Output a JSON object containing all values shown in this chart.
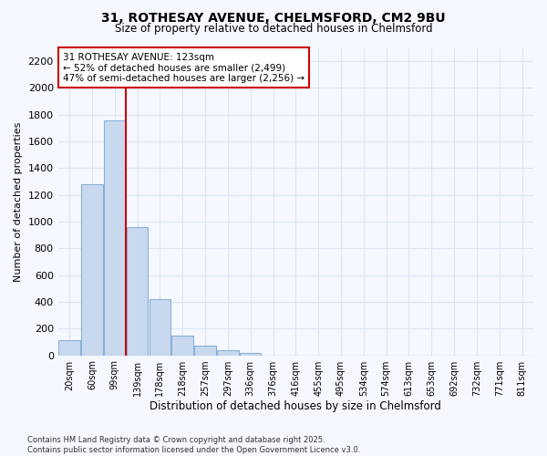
{
  "title": "31, ROTHESAY AVENUE, CHELMSFORD, CM2 9BU",
  "subtitle": "Size of property relative to detached houses in Chelmsford",
  "xlabel": "Distribution of detached houses by size in Chelmsford",
  "ylabel": "Number of detached properties",
  "categories": [
    "20sqm",
    "60sqm",
    "99sqm",
    "139sqm",
    "178sqm",
    "218sqm",
    "257sqm",
    "297sqm",
    "336sqm",
    "376sqm",
    "416sqm",
    "455sqm",
    "495sqm",
    "534sqm",
    "574sqm",
    "613sqm",
    "653sqm",
    "692sqm",
    "732sqm",
    "771sqm",
    "811sqm"
  ],
  "values": [
    110,
    1280,
    1760,
    960,
    420,
    150,
    70,
    40,
    20,
    0,
    0,
    0,
    0,
    0,
    0,
    0,
    0,
    0,
    0,
    0,
    0
  ],
  "bar_color": "#c8d9ef",
  "bar_edge_color": "#8ab0d8",
  "vline_color": "#cc0000",
  "annotation_text": "31 ROTHESAY AVENUE: 123sqm\n← 52% of detached houses are smaller (2,499)\n47% of semi-detached houses are larger (2,256) →",
  "annotation_box_color": "#ffffff",
  "annotation_box_edge": "#cc0000",
  "ylim": [
    0,
    2300
  ],
  "yticks": [
    0,
    200,
    400,
    600,
    800,
    1000,
    1200,
    1400,
    1600,
    1800,
    2000,
    2200
  ],
  "background_color": "#f5f8ff",
  "grid_color": "#dce6f5",
  "footer_line1": "Contains HM Land Registry data © Crown copyright and database right 2025.",
  "footer_line2": "Contains public sector information licensed under the Open Government Licence v3.0."
}
